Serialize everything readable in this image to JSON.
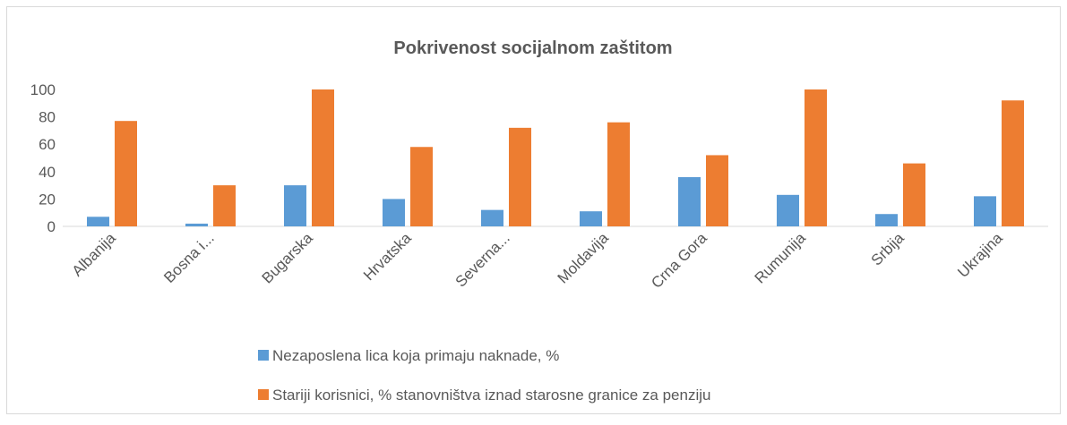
{
  "chart_data": {
    "type": "bar",
    "title": "Pokrivenost socijalnom zaštitom",
    "categories": [
      "Albanija",
      "Bosna i...",
      "Bugarska",
      "Hrvatska",
      "Severna...",
      "Moldavija",
      "Crna Gora",
      "Rumunija",
      "Srbija",
      "Ukrajina"
    ],
    "series": [
      {
        "name": "Nezaposlena lica koja primaju naknade, %",
        "color": "#5b9bd5",
        "values": [
          7,
          2,
          30,
          20,
          12,
          11,
          36,
          23,
          9,
          22
        ]
      },
      {
        "name": "Stariji korisnici, % stanovništva iznad starosne granice za penziju",
        "color": "#ed7d31",
        "values": [
          77,
          30,
          100,
          58,
          72,
          76,
          52,
          100,
          46,
          92
        ]
      }
    ],
    "ylim": [
      0,
      100
    ],
    "yticks": [
      0,
      20,
      40,
      60,
      80,
      100
    ],
    "grid": false,
    "legend": "bottom"
  }
}
